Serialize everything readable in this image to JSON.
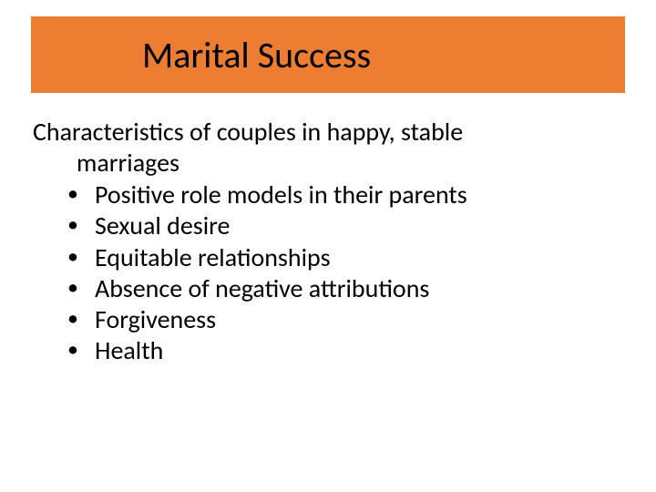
{
  "colors": {
    "title_bar_bg": "#ed7d31",
    "title_text": "#000000",
    "body_text": "#000000",
    "slide_bg": "#ffffff"
  },
  "typography": {
    "font_family": "Calibri",
    "title_fontsize_pt": 40,
    "body_fontsize_pt": 28
  },
  "title": "Marital Success",
  "subtitle_line1": "Characteristics of couples in happy, stable",
  "subtitle_line2": "marriages",
  "bullets": [
    "Positive role models in their parents",
    "Sexual desire",
    "Equitable relationships",
    "Absence of negative attributions",
    "Forgiveness",
    "Health"
  ]
}
